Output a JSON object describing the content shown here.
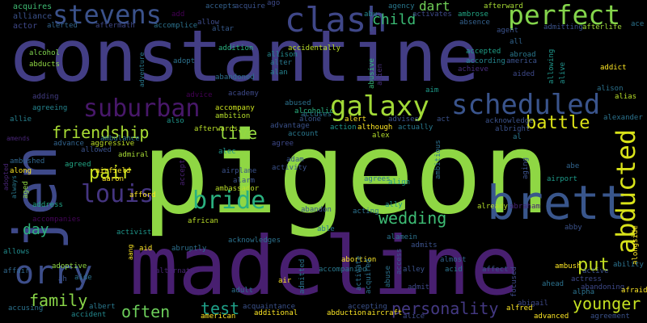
{
  "words": [
    {
      "text": "pigeon",
      "color": "#8fd744"
    },
    {
      "text": "constantine",
      "color": "#433e85"
    },
    {
      "text": "madeline",
      "color": "#481f70"
    },
    {
      "text": "jen",
      "color": "#3e4989"
    },
    {
      "text": "brett",
      "color": "#39568c"
    },
    {
      "text": "clash",
      "color": "#3f4788"
    },
    {
      "text": "galaxy",
      "color": "#a2da37"
    },
    {
      "text": "scheduled",
      "color": "#3a548c"
    },
    {
      "text": "perfect",
      "color": "#84d44b"
    },
    {
      "text": "stevens",
      "color": "#3b528b"
    },
    {
      "text": "suburban",
      "color": "#48186a"
    },
    {
      "text": "abducted",
      "color": "#d8e219"
    },
    {
      "text": "orry",
      "color": "#3d4e8a"
    },
    {
      "text": "louis",
      "color": "#453581"
    },
    {
      "text": "bride",
      "color": "#2ab07f"
    },
    {
      "text": "friendship",
      "color": "#a8db34"
    },
    {
      "text": "battle",
      "color": "#dde318"
    },
    {
      "text": "pair",
      "color": "#c8e020"
    },
    {
      "text": "wedding",
      "color": "#3dbc74"
    },
    {
      "text": "personality",
      "color": "#443983"
    },
    {
      "text": "younger",
      "color": "#c5e021"
    },
    {
      "text": "put",
      "color": "#c5e021"
    },
    {
      "text": "test",
      "color": "#1fa088"
    },
    {
      "text": "often",
      "color": "#6ccd5a"
    },
    {
      "text": "family",
      "color": "#89d548"
    },
    {
      "text": "live",
      "color": "#95d840"
    },
    {
      "text": "child",
      "color": "#3bbb75"
    },
    {
      "text": "day",
      "color": "#2db27d"
    },
    {
      "text": "dart",
      "color": "#70cf57"
    },
    {
      "text": "acquires",
      "color": "#3fbc73"
    },
    {
      "text": "alliance",
      "color": "#3b528b"
    },
    {
      "text": "actor",
      "color": "#3f4889"
    },
    {
      "text": "alerted",
      "color": "#32648e"
    },
    {
      "text": "aftermath",
      "color": "#3f4889"
    },
    {
      "text": "accomplice",
      "color": "#2c728e"
    },
    {
      "text": "alcohol",
      "color": "#7fd34e"
    },
    {
      "text": "abducts",
      "color": "#90d743"
    },
    {
      "text": "adventure",
      "color": "#29798e"
    },
    {
      "text": "adopt",
      "color": "#2d718e"
    },
    {
      "text": "adding",
      "color": "#433d84"
    },
    {
      "text": "agreeing",
      "color": "#25848e"
    },
    {
      "text": "allie",
      "color": "#27808e"
    },
    {
      "text": "amends",
      "color": "#482576"
    },
    {
      "text": "ambushed",
      "color": "#31668e"
    },
    {
      "text": "along",
      "color": "#fde725"
    },
    {
      "text": "address",
      "color": "#20a486"
    },
    {
      "text": "accompanies",
      "color": "#450559"
    },
    {
      "text": "ally",
      "color": "#21918c"
    },
    {
      "text": "allows",
      "color": "#228c8d"
    },
    {
      "text": "affair",
      "color": "#31688e"
    },
    {
      "text": "accusing",
      "color": "#2c738e"
    },
    {
      "text": "accident",
      "color": "#23898e"
    },
    {
      "text": "albert",
      "color": "#2a788e"
    },
    {
      "text": "add",
      "color": "#440154"
    },
    {
      "text": "accepts",
      "color": "#34618d"
    },
    {
      "text": "acquire",
      "color": "#3b528b"
    },
    {
      "text": "ago",
      "color": "#3e4a89"
    },
    {
      "text": "allow",
      "color": "#3e4c8a"
    },
    {
      "text": "altar",
      "color": "#375a8c"
    },
    {
      "text": "addition",
      "color": "#2ab07f"
    },
    {
      "text": "allison",
      "color": "#23898e"
    },
    {
      "text": "alter",
      "color": "#2a788e"
    },
    {
      "text": "alan",
      "color": "#26828e"
    },
    {
      "text": "accidentally",
      "color": "#bade28"
    },
    {
      "text": "abandoned",
      "color": "#2e6e8e"
    },
    {
      "text": "academy",
      "color": "#3e4a89"
    },
    {
      "text": "advice",
      "color": "#440154"
    },
    {
      "text": "accompany",
      "color": "#cae11f"
    },
    {
      "text": "ambition",
      "color": "#b5de2b"
    },
    {
      "text": "afterwards",
      "color": "#b8de29"
    },
    {
      "text": "also",
      "color": "#1f968b"
    },
    {
      "text": "abused",
      "color": "#2c728e"
    },
    {
      "text": "accuses",
      "color": "#2d708e"
    },
    {
      "text": "advantage",
      "color": "#3b528b"
    },
    {
      "text": "account",
      "color": "#2a788e"
    },
    {
      "text": "agree",
      "color": "#3e4989"
    },
    {
      "text": "alcoholic",
      "color": "#29af7f"
    },
    {
      "text": "alone",
      "color": "#39568c"
    },
    {
      "text": "action",
      "color": "#1f988b"
    },
    {
      "text": "alert",
      "color": "#fde725"
    },
    {
      "text": "although",
      "color": "#fde725"
    },
    {
      "text": "advises",
      "color": "#3b528b"
    },
    {
      "text": "actually",
      "color": "#29788e"
    },
    {
      "text": "alex",
      "color": "#b5de2b"
    },
    {
      "text": "abu",
      "color": "#24868e"
    },
    {
      "text": "alien",
      "color": "#472c7a"
    },
    {
      "text": "abusive",
      "color": "#35b779"
    },
    {
      "text": "aim",
      "color": "#1e9b8a"
    },
    {
      "text": "act",
      "color": "#3b528b"
    },
    {
      "text": "agency",
      "color": "#29788e"
    },
    {
      "text": "activates",
      "color": "#3e4a89"
    },
    {
      "text": "ambrose",
      "color": "#22a785"
    },
    {
      "text": "absence",
      "color": "#34618d"
    },
    {
      "text": "afterward",
      "color": "#a8db34"
    },
    {
      "text": "agent",
      "color": "#3b528b"
    },
    {
      "text": "admitting",
      "color": "#3b528b"
    },
    {
      "text": "afterlife",
      "color": "#a0da39"
    },
    {
      "text": "ace",
      "color": "#2c738e"
    },
    {
      "text": "all",
      "color": "#32648e"
    },
    {
      "text": "accepted",
      "color": "#1f9f88"
    },
    {
      "text": "abroad",
      "color": "#2a788e"
    },
    {
      "text": "according",
      "color": "#25858e"
    },
    {
      "text": "america",
      "color": "#3b528b"
    },
    {
      "text": "achieve",
      "color": "#472d7b"
    },
    {
      "text": "aided",
      "color": "#3e4989"
    },
    {
      "text": "allowing",
      "color": "#1f968b"
    },
    {
      "text": "alive",
      "color": "#21918c"
    },
    {
      "text": "addict",
      "color": "#fde725"
    },
    {
      "text": "alison",
      "color": "#2c728e"
    },
    {
      "text": "alias",
      "color": "#b8de29"
    },
    {
      "text": "acknowledge",
      "color": "#3b528b"
    },
    {
      "text": "albright",
      "color": "#3b528b"
    },
    {
      "text": "al",
      "color": "#2a788e"
    },
    {
      "text": "alexander",
      "color": "#2c738e"
    },
    {
      "text": "activity",
      "color": "#3b528b"
    },
    {
      "text": "adam",
      "color": "#39568c"
    },
    {
      "text": "airplane",
      "color": "#3b528b"
    },
    {
      "text": "accept",
      "color": "#482071"
    },
    {
      "text": "alec",
      "color": "#1f968b"
    },
    {
      "text": "adopted",
      "color": "#482576"
    },
    {
      "text": "always",
      "color": "#29798e"
    },
    {
      "text": "aged",
      "color": "#8fd744"
    },
    {
      "text": "advance",
      "color": "#32648e"
    },
    {
      "text": "ambulance",
      "color": "#2c728e"
    },
    {
      "text": "allowed",
      "color": "#3b528b"
    },
    {
      "text": "admiral",
      "color": "#a8db34"
    },
    {
      "text": "aggressive",
      "color": "#bade28"
    },
    {
      "text": "agreed",
      "color": "#22a785"
    },
    {
      "text": "airfield",
      "color": "#fde725"
    },
    {
      "text": "aaron",
      "color": "#fde725"
    },
    {
      "text": "afford",
      "color": "#fde725"
    },
    {
      "text": "alarm",
      "color": "#3b528b"
    },
    {
      "text": "ambassador",
      "color": "#bade28"
    },
    {
      "text": "align",
      "color": "#1f968b"
    },
    {
      "text": "agrees",
      "color": "#2d708e"
    },
    {
      "text": "ambitious",
      "color": "#2d708e"
    },
    {
      "text": "aging",
      "color": "#3b528b"
    },
    {
      "text": "airport",
      "color": "#1e9b8a"
    },
    {
      "text": "abe",
      "color": "#32648e"
    },
    {
      "text": "abraham",
      "color": "#482576"
    },
    {
      "text": "already",
      "color": "#b5de2b"
    },
    {
      "text": "african",
      "color": "#bade28"
    },
    {
      "text": "abandon",
      "color": "#3b528b"
    },
    {
      "text": "acting",
      "color": "#2c728e"
    },
    {
      "text": "able",
      "color": "#29788e"
    },
    {
      "text": "alamein",
      "color": "#2c738e"
    },
    {
      "text": "admits",
      "color": "#3b528b"
    },
    {
      "text": "abby",
      "color": "#3b528b"
    },
    {
      "text": "alongside",
      "color": "#fde725"
    },
    {
      "text": "activist",
      "color": "#1f968b"
    },
    {
      "text": "aid",
      "color": "#fde725"
    },
    {
      "text": "aang",
      "color": "#fde725"
    },
    {
      "text": "abruptly",
      "color": "#2d708e"
    },
    {
      "text": "acknowledges",
      "color": "#2c728e"
    },
    {
      "text": "abortion",
      "color": "#fde725"
    },
    {
      "text": "almost",
      "color": "#32648e"
    },
    {
      "text": "affect",
      "color": "#3b528b"
    },
    {
      "text": "ambush",
      "color": "#fde725"
    },
    {
      "text": "active",
      "color": "#3b528b"
    },
    {
      "text": "actress",
      "color": "#3e4989"
    },
    {
      "text": "ability",
      "color": "#2c728e"
    },
    {
      "text": "adoptive",
      "color": "#8fd744"
    },
    {
      "text": "aide",
      "color": "#2c728e"
    },
    {
      "text": "alternate",
      "color": "#482576"
    },
    {
      "text": "accompanied",
      "color": "#2a788e"
    },
    {
      "text": "access",
      "color": "#3b528b"
    },
    {
      "text": "alley",
      "color": "#3b528b"
    },
    {
      "text": "acid",
      "color": "#2c728e"
    },
    {
      "text": "abandoning",
      "color": "#3e4989"
    },
    {
      "text": "alpha",
      "color": "#2c728e"
    },
    {
      "text": "afraid",
      "color": "#fde725"
    },
    {
      "text": "ah",
      "color": "#3b528b"
    },
    {
      "text": "adult",
      "color": "#2d708e"
    },
    {
      "text": "air",
      "color": "#fde725"
    },
    {
      "text": "admitted",
      "color": "#2c728e"
    },
    {
      "text": "activate",
      "color": "#2c728e"
    },
    {
      "text": "acquired",
      "color": "#2c728e"
    },
    {
      "text": "abuse",
      "color": "#2c728e"
    },
    {
      "text": "admit",
      "color": "#3e4989"
    },
    {
      "text": "abigail",
      "color": "#3e4989"
    },
    {
      "text": "ahead",
      "color": "#2c728e"
    },
    {
      "text": "focused",
      "color": "#3e4989"
    },
    {
      "text": "acquaintance",
      "color": "#3b528b"
    },
    {
      "text": "accepting",
      "color": "#3b528b"
    },
    {
      "text": "alice",
      "color": "#3e4989"
    },
    {
      "text": "american",
      "color": "#fde725"
    },
    {
      "text": "additional",
      "color": "#fde725"
    },
    {
      "text": "abduction",
      "color": "#fde725"
    },
    {
      "text": "aircraft",
      "color": "#fde725"
    },
    {
      "text": "alfred",
      "color": "#fde725"
    },
    {
      "text": "advanced",
      "color": "#fde725"
    },
    {
      "text": "agreement",
      "color": "#3b528b"
    }
  ]
}
